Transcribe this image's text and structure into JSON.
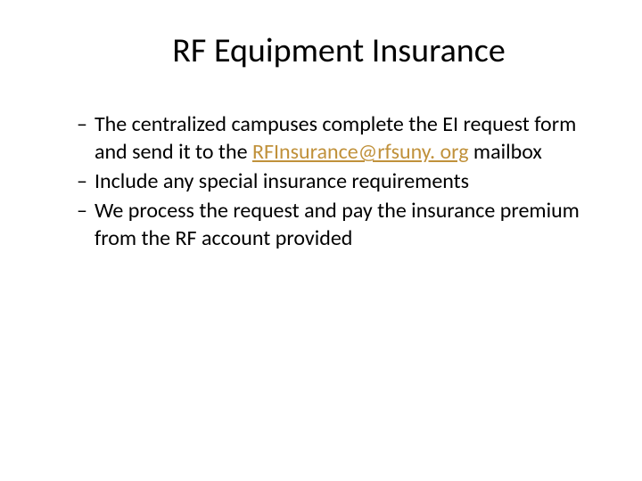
{
  "title": "RF Equipment Insurance",
  "bullets": [
    {
      "pre": "The centralized campuses complete the EI request form and send it to the ",
      "link": "RFInsurance@rfsuny. org",
      "post": " mailbox"
    },
    {
      "text": "Include any special insurance requirements"
    },
    {
      "text": "We process the request and pay the insurance premium from the RF account provided"
    }
  ],
  "colors": {
    "link": "#c0913b"
  }
}
